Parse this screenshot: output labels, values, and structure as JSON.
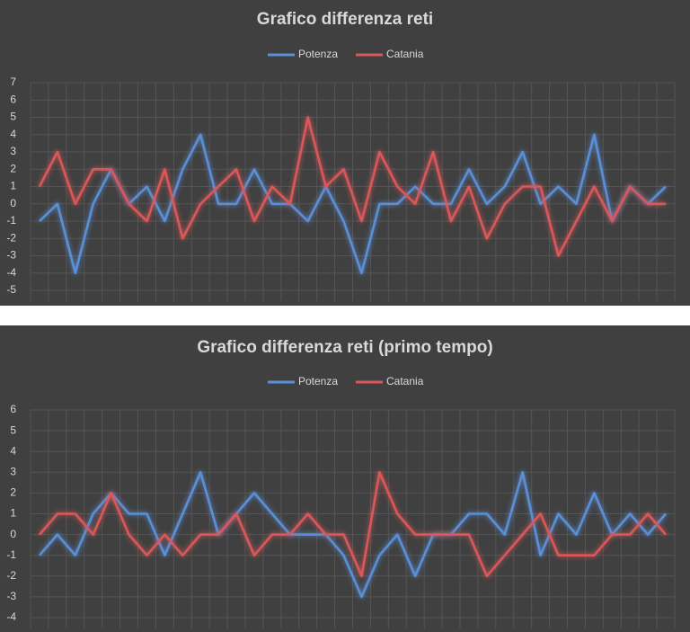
{
  "chart_data": [
    {
      "type": "line",
      "title": "Grafico differenza reti",
      "categories": [
        null,
        null,
        null,
        null,
        null,
        null,
        null,
        null,
        null,
        null,
        null,
        null,
        null,
        null,
        null,
        null,
        null,
        null,
        null,
        null,
        null,
        null,
        null,
        null,
        null,
        null,
        null,
        null,
        null,
        null,
        null,
        null,
        null,
        null,
        null,
        null
      ],
      "series": [
        {
          "name": "Potenza",
          "color": "#5b8fd6",
          "values": [
            -1,
            0,
            -4,
            0,
            2,
            0,
            1,
            -1,
            2,
            4,
            0,
            0,
            2,
            0,
            0,
            -1,
            1,
            -1,
            -4,
            0,
            0,
            1,
            0,
            0,
            2,
            0,
            1,
            3,
            0,
            1,
            0,
            4,
            -1,
            1,
            0,
            1
          ]
        },
        {
          "name": "Catania",
          "color": "#d9585a",
          "values": [
            1,
            3,
            0,
            2,
            2,
            0,
            -1,
            2,
            -2,
            0,
            1,
            2,
            -1,
            1,
            0,
            5,
            1,
            2,
            -1,
            3,
            1,
            0,
            3,
            -1,
            1,
            -2,
            0,
            1,
            1,
            -3,
            -1,
            1,
            -1,
            1,
            0,
            0
          ]
        }
      ],
      "ylim": [
        -5,
        7
      ],
      "yticks": [
        -5,
        -4,
        -3,
        -2,
        -1,
        0,
        1,
        2,
        3,
        4,
        5,
        6,
        7
      ],
      "grid": true,
      "legend": "top"
    },
    {
      "type": "line",
      "title": "Grafico differenza reti (primo tempo)",
      "categories": [
        null,
        null,
        null,
        null,
        null,
        null,
        null,
        null,
        null,
        null,
        null,
        null,
        null,
        null,
        null,
        null,
        null,
        null,
        null,
        null,
        null,
        null,
        null,
        null,
        null,
        null,
        null,
        null,
        null,
        null,
        null,
        null,
        null,
        null,
        null,
        null
      ],
      "series": [
        {
          "name": "Potenza",
          "color": "#5b8fd6",
          "values": [
            -1,
            0,
            -1,
            1,
            2,
            1,
            1,
            -1,
            1,
            3,
            0,
            1,
            2,
            1,
            0,
            0,
            0,
            -1,
            -3,
            -1,
            0,
            -2,
            0,
            0,
            1,
            1,
            0,
            3,
            -1,
            1,
            0,
            2,
            0,
            1,
            0,
            1
          ]
        },
        {
          "name": "Catania",
          "color": "#d9585a",
          "values": [
            0,
            1,
            1,
            0,
            2,
            0,
            -1,
            0,
            -1,
            0,
            0,
            1,
            -1,
            0,
            0,
            1,
            0,
            0,
            -2,
            3,
            1,
            0,
            0,
            0,
            0,
            -2,
            -1,
            0,
            1,
            -1,
            -1,
            -1,
            0,
            0,
            1,
            0
          ]
        }
      ],
      "ylim": [
        -4,
        6
      ],
      "yticks": [
        -4,
        -3,
        -2,
        -1,
        0,
        1,
        2,
        3,
        4,
        5,
        6
      ],
      "grid": true,
      "legend": "top"
    }
  ]
}
